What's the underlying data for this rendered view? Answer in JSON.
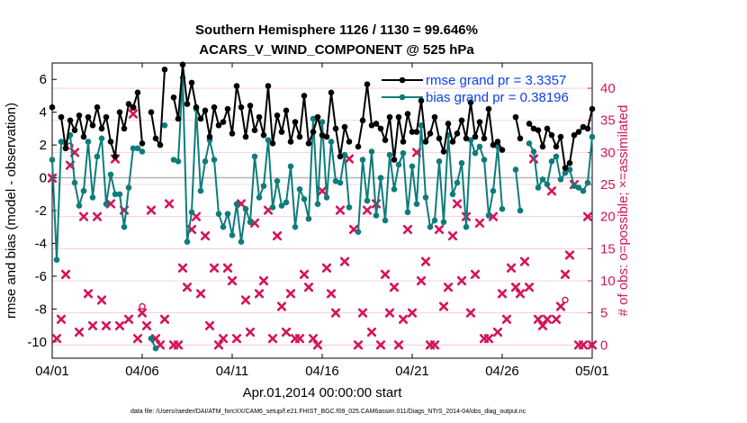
{
  "chart_data": {
    "type": "line",
    "title": "Southern Hemisphere 1126 / 1130 = 99.646%",
    "subtitle": "ACARS_V_WIND_COMPONENT @ 525 hPa",
    "xlabel": "Apr.01,2014 00:00:00 start",
    "ylabel_left": "rmse and bias (model - observation)",
    "ylabel_right": "# of obs: o=possible; ×=assimilated",
    "footer": "data file: /Users/raeder/DAI/ATM_forcXX/CAM6_setup/f.e21.FHIST_BGC.f09_025.CAM6assim.011/Diags_NTrS_2014-04/obs_diag_output.nc",
    "x_ticks": [
      "04/01",
      "04/06",
      "04/11",
      "04/16",
      "04/21",
      "04/26",
      "05/01"
    ],
    "x_tick_days": [
      0,
      5,
      10,
      15,
      20,
      25,
      30
    ],
    "xlim": [
      0,
      30
    ],
    "ylim_left": [
      -11,
      7
    ],
    "y_ticks_left": [
      -10,
      -8,
      -6,
      -4,
      -2,
      0,
      2,
      4,
      6
    ],
    "ylim_right": [
      -2.0625,
      43.9375
    ],
    "y_ticks_right": [
      0,
      5,
      10,
      15,
      20,
      25,
      30,
      35,
      40
    ],
    "series": [
      {
        "name": "rmse",
        "legend": "rmse grand pr = 3.3357",
        "color": "#000000",
        "x": [
          0.0,
          0.25,
          0.5,
          0.75,
          1.0,
          1.25,
          1.5,
          1.75,
          2.0,
          2.25,
          2.5,
          2.75,
          3.0,
          3.25,
          3.5,
          3.75,
          4.0,
          4.25,
          4.5,
          4.75,
          5.0,
          5.25,
          5.5,
          5.75,
          6.0,
          6.25,
          6.5,
          6.75,
          7.0,
          7.25,
          7.5,
          7.75,
          8.0,
          8.25,
          8.5,
          8.75,
          9.0,
          9.25,
          9.5,
          9.75,
          10.0,
          10.25,
          10.5,
          10.75,
          11.0,
          11.25,
          11.5,
          11.75,
          12.0,
          12.25,
          12.5,
          12.75,
          13.0,
          13.25,
          13.5,
          13.75,
          14.0,
          14.25,
          14.5,
          14.75,
          15.0,
          15.25,
          15.5,
          15.75,
          16.0,
          16.25,
          16.5,
          16.75,
          17.0,
          17.25,
          17.5,
          17.75,
          18.0,
          18.25,
          18.5,
          18.75,
          19.0,
          19.25,
          19.5,
          19.75,
          20.0,
          20.25,
          20.5,
          20.75,
          21.0,
          21.25,
          21.5,
          21.75,
          22.0,
          22.25,
          22.5,
          22.75,
          23.0,
          23.25,
          23.5,
          23.75,
          24.0,
          24.25,
          24.5,
          24.75,
          25.0,
          25.25,
          25.5,
          25.75,
          26.0,
          26.25,
          26.5,
          26.75,
          27.0,
          27.25,
          27.5,
          27.75,
          28.0,
          28.25,
          28.5,
          28.75,
          29.0,
          29.25,
          29.5,
          29.75,
          30.0
        ],
        "values": [
          4.3,
          null,
          3.7,
          1.8,
          3.5,
          2.9,
          3.8,
          2.5,
          3.7,
          3.2,
          4.3,
          3.0,
          3.7,
          2.2,
          1.3,
          4.0,
          3.0,
          4.5,
          4.3,
          5.2,
          2.1,
          null,
          4.0,
          2.4,
          2.0,
          6.6,
          null,
          4.9,
          3.6,
          6.9,
          4.5,
          5.8,
          4.3,
          3.6,
          4.1,
          2.5,
          4.3,
          3.2,
          3.4,
          4.2,
          2.7,
          5.6,
          4.3,
          2.5,
          4.4,
          2.9,
          3.7,
          2.6,
          5.6,
          2.1,
          3.8,
          2.8,
          4.1,
          2.2,
          3.4,
          2.5,
          5.0,
          2.1,
          2.8,
          3.7,
          2.6,
          2.5,
          5.2,
          3.0,
          1.3,
          3.1,
          2.2,
          null,
          1.9,
          3.5,
          5.7,
          3.2,
          3.3,
          3.0,
          2.3,
          3.7,
          1.1,
          3.7,
          2.2,
          3.9,
          2.8,
          2.8,
          4.7,
          2.2,
          2.7,
          3.7,
          2.4,
          1.6,
          3.3,
          2.2,
          2.7,
          3.5,
          2.4,
          4.6,
          2.5,
          3.4,
          2.4,
          4.2,
          2.0,
          2.2,
          1.7,
          null,
          null,
          3.7,
          2.4,
          null,
          3.3,
          3.0,
          2.9,
          1.9,
          3.0,
          2.6,
          1.9,
          2.5,
          0.6,
          0.9,
          2.6,
          2.8,
          3.1,
          3.0,
          4.2
        ]
      },
      {
        "name": "bias",
        "legend": "bias grand pr = 0.38196",
        "color": "#0e7c7b",
        "x": [
          0.0,
          0.25,
          0.5,
          0.75,
          1.0,
          1.25,
          1.5,
          1.75,
          2.0,
          2.25,
          2.5,
          2.75,
          3.0,
          3.25,
          3.5,
          3.75,
          4.0,
          4.25,
          4.5,
          4.75,
          5.0,
          5.25,
          5.5,
          5.75,
          6.0,
          6.25,
          6.5,
          6.75,
          7.0,
          7.25,
          7.5,
          7.75,
          8.0,
          8.25,
          8.5,
          8.75,
          9.0,
          9.25,
          9.5,
          9.75,
          10.0,
          10.25,
          10.5,
          10.75,
          11.0,
          11.25,
          11.5,
          11.75,
          12.0,
          12.25,
          12.5,
          12.75,
          13.0,
          13.25,
          13.5,
          13.75,
          14.0,
          14.25,
          14.5,
          14.75,
          15.0,
          15.25,
          15.5,
          15.75,
          16.0,
          16.25,
          16.5,
          16.75,
          17.0,
          17.25,
          17.5,
          17.75,
          18.0,
          18.25,
          18.5,
          18.75,
          19.0,
          19.25,
          19.5,
          19.75,
          20.0,
          20.25,
          20.5,
          20.75,
          21.0,
          21.25,
          21.5,
          21.75,
          22.0,
          22.25,
          22.5,
          22.75,
          23.0,
          23.25,
          23.5,
          23.75,
          24.0,
          24.25,
          24.5,
          24.75,
          25.0,
          25.25,
          25.5,
          25.75,
          26.0,
          26.25,
          26.5,
          26.75,
          27.0,
          27.25,
          27.5,
          27.75,
          28.0,
          28.25,
          28.5,
          28.75,
          29.0,
          29.25,
          29.5,
          29.75,
          30.0
        ],
        "values": [
          1.1,
          -5.0,
          2.2,
          2.1,
          2.6,
          -0.3,
          -1.7,
          -0.8,
          2.2,
          -1.2,
          1.3,
          2.4,
          -1.6,
          0.2,
          -1.0,
          -1.0,
          -3.0,
          -0.6,
          1.8,
          1.8,
          1.6,
          null,
          -9.8,
          -10.4,
          null,
          3.2,
          null,
          1.1,
          1.0,
          6.1,
          -3.9,
          -2.1,
          4.2,
          -0.8,
          1.0,
          2.3,
          1.1,
          -2.2,
          -3.0,
          -2.2,
          -3.5,
          -1.6,
          -3.9,
          -1.9,
          -2.7,
          1.3,
          -1.2,
          -0.5,
          2.3,
          -1.8,
          -0.2,
          -1.7,
          -1.5,
          0.7,
          -3.0,
          -0.7,
          -1.3,
          -2.5,
          3.6,
          -1.6,
          3.4,
          -1.2,
          2.2,
          -0.2,
          -0.3,
          1.4,
          -1.8,
          null,
          -3.3,
          1.1,
          -1.4,
          1.6,
          -2.3,
          0.0,
          -2.6,
          1.4,
          -0.7,
          0.8,
          1.5,
          -2.1,
          0.7,
          -1.6,
          3.2,
          -1.2,
          -3.0,
          -2.6,
          1.0,
          -2.7,
          2.6,
          -1.0,
          -0.3,
          0.9,
          -3.0,
          2.3,
          1.5,
          1.9,
          1.1,
          -2.3,
          -0.8,
          1.9,
          -1.9,
          null,
          null,
          0.5,
          -2.0,
          null,
          2.1,
          1.6,
          -0.6,
          -0.1,
          -0.4,
          1.0,
          1.3,
          -0.1,
          0.3,
          0.5,
          -0.5,
          -0.6,
          -0.8,
          -0.3,
          2.5
        ]
      },
      {
        "name": "obs_assimilated",
        "marker": "x",
        "axis": "right",
        "color": "#d4145a",
        "x": [
          0.0,
          0.25,
          0.5,
          0.75,
          1.0,
          1.25,
          1.5,
          1.75,
          2.0,
          2.25,
          2.5,
          2.75,
          3.0,
          3.25,
          3.5,
          3.75,
          4.0,
          4.25,
          4.5,
          4.75,
          5.0,
          5.25,
          5.5,
          5.75,
          6.0,
          6.25,
          6.5,
          6.75,
          7.0,
          7.25,
          7.5,
          7.75,
          8.0,
          8.25,
          8.5,
          8.75,
          9.0,
          9.25,
          9.5,
          9.75,
          10.0,
          10.25,
          10.5,
          10.75,
          11.0,
          11.25,
          11.5,
          11.75,
          12.0,
          12.25,
          12.5,
          12.75,
          13.0,
          13.25,
          13.5,
          13.75,
          14.0,
          14.25,
          14.5,
          14.75,
          15.0,
          15.25,
          15.5,
          15.75,
          16.0,
          16.25,
          16.5,
          16.75,
          17.0,
          17.25,
          17.5,
          17.75,
          18.0,
          18.25,
          18.5,
          18.75,
          19.0,
          19.25,
          19.5,
          19.75,
          20.0,
          20.25,
          20.5,
          20.75,
          21.0,
          21.25,
          21.5,
          21.75,
          22.0,
          22.25,
          22.5,
          22.75,
          23.0,
          23.25,
          23.5,
          23.75,
          24.0,
          24.25,
          24.5,
          24.75,
          25.0,
          25.25,
          25.5,
          25.75,
          26.0,
          26.25,
          26.5,
          26.75,
          27.0,
          27.25,
          27.5,
          27.75,
          28.0,
          28.25,
          28.5,
          28.75,
          29.0,
          29.25,
          29.5,
          29.75,
          30.0
        ],
        "values": [
          26,
          1,
          4,
          11,
          28,
          30,
          2,
          20,
          8,
          3,
          20,
          7,
          3,
          22,
          29,
          3,
          21,
          4,
          36,
          1,
          5,
          3,
          21,
          1,
          0,
          4,
          22,
          0,
          0,
          12,
          9,
          18,
          20,
          8,
          17,
          3,
          12,
          0,
          1,
          12,
          10,
          1,
          22,
          7,
          2,
          19,
          8,
          10,
          21,
          1,
          17,
          6,
          2,
          8,
          1,
          1,
          11,
          9,
          1,
          0,
          24,
          12,
          8,
          5,
          21,
          13,
          29,
          18,
          0,
          5,
          21,
          2,
          22,
          0,
          11,
          5,
          9,
          0,
          4,
          18,
          5,
          30,
          10,
          13,
          0,
          0,
          18,
          6,
          9,
          17,
          22,
          10,
          20,
          5,
          11,
          19,
          1,
          1,
          20,
          2,
          8,
          4,
          12,
          9,
          8,
          13,
          9,
          29,
          4,
          3,
          4,
          24,
          4,
          6,
          11,
          14,
          25,
          0,
          0,
          20,
          0
        ]
      },
      {
        "name": "obs_possible",
        "marker": "o",
        "axis": "right",
        "color": "#d4145a",
        "x": [
          1.0,
          4.5,
          5.0,
          28.5
        ],
        "values": [
          31,
          37,
          6,
          7
        ]
      }
    ]
  }
}
